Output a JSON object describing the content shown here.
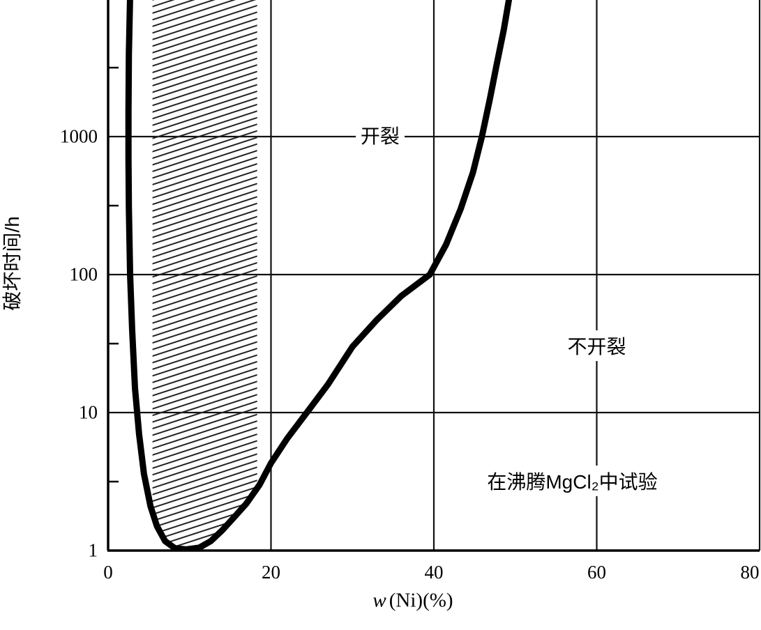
{
  "colors": {
    "background": "#ffffff",
    "curve": "#000000",
    "grid": "#111111",
    "axis": "#000000",
    "hatch": "#222222"
  },
  "chart_data": {
    "type": "line",
    "title": "",
    "xlabel": "w (Ni)(%)",
    "x_axis": {
      "symbol": "w",
      "rest": "(Ni)(%)"
    },
    "ylabel": "破坏时间/h",
    "xlim": [
      0,
      80
    ],
    "ylim": [
      1,
      10000
    ],
    "y_scale": "log",
    "grid": true,
    "x_ticks": [
      0,
      20,
      40,
      60,
      80
    ],
    "y_ticks": [
      1,
      10,
      100,
      1000
    ],
    "minor_y_ticks": [
      3.16,
      31.6,
      316,
      3160
    ],
    "annotations": {
      "cracking": {
        "text": "开裂",
        "x": 33.4,
        "y": 1020
      },
      "no_cracking": {
        "text": "不开裂",
        "x": 60,
        "y": 30.5
      },
      "test_note": {
        "text": "在沸腾MgCl₂中试验",
        "x": 57,
        "y": 3.2
      }
    },
    "hatch_band": {
      "x_start": 5.45,
      "x_end": 18.3,
      "lower_boundary": [
        [
          18.3,
          2.85
        ],
        [
          17,
          2.2
        ],
        [
          15.5,
          1.75
        ],
        [
          14,
          1.4
        ],
        [
          12.6,
          1.17
        ],
        [
          11.2,
          1.05
        ],
        [
          9.6,
          1.02
        ],
        [
          8.2,
          1.04
        ],
        [
          7.0,
          1.17
        ],
        [
          6.0,
          1.5
        ],
        [
          5.45,
          1.95
        ]
      ]
    },
    "series": [
      {
        "name": "scc-boundary-curve",
        "points": [
          [
            2.7,
            10500
          ],
          [
            2.55,
            4000
          ],
          [
            2.5,
            1500
          ],
          [
            2.5,
            700
          ],
          [
            2.55,
            300
          ],
          [
            2.7,
            100
          ],
          [
            2.95,
            40
          ],
          [
            3.3,
            15
          ],
          [
            3.8,
            7
          ],
          [
            4.4,
            3.6
          ],
          [
            5.2,
            2.1
          ],
          [
            6.0,
            1.5
          ],
          [
            7.0,
            1.17
          ],
          [
            8.2,
            1.04
          ],
          [
            9.6,
            1.02
          ],
          [
            11.2,
            1.05
          ],
          [
            12.6,
            1.17
          ],
          [
            14.0,
            1.4
          ],
          [
            15.5,
            1.75
          ],
          [
            17.0,
            2.2
          ],
          [
            18.6,
            3.0
          ],
          [
            20.0,
            4.3
          ],
          [
            22.0,
            6.5
          ],
          [
            24.4,
            10
          ],
          [
            27.0,
            16
          ],
          [
            30.0,
            30
          ],
          [
            33.0,
            47
          ],
          [
            36.0,
            70
          ],
          [
            39.5,
            100
          ],
          [
            41.5,
            165
          ],
          [
            43.3,
            300
          ],
          [
            44.8,
            550
          ],
          [
            45.9,
            1000
          ],
          [
            46.9,
            1900
          ],
          [
            47.7,
            3300
          ],
          [
            48.6,
            6000
          ],
          [
            49.3,
            10500
          ]
        ]
      }
    ]
  }
}
